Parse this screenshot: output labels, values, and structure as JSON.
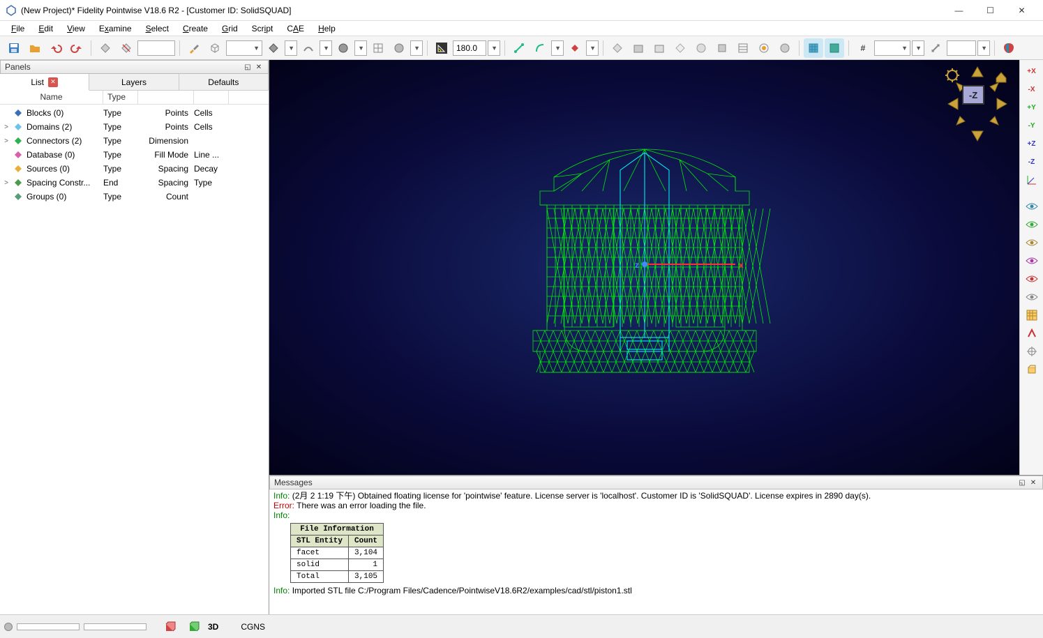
{
  "window": {
    "title": "(New Project)* Fidelity Pointwise V18.6 R2 - [Customer ID: SolidSQUAD]"
  },
  "menus": [
    "File",
    "Edit",
    "View",
    "Examine",
    "Select",
    "Create",
    "Grid",
    "Script",
    "CAE",
    "Help"
  ],
  "toolbar": {
    "angle_value": "180.0"
  },
  "panels": {
    "title": "Panels",
    "tabs": [
      {
        "label": "List",
        "active": true,
        "closable": true
      },
      {
        "label": "Layers",
        "active": false,
        "closable": false
      },
      {
        "label": "Defaults",
        "active": false,
        "closable": false
      }
    ],
    "columns": [
      "Name",
      "Type",
      "",
      ""
    ],
    "tree": [
      {
        "exp": "",
        "icon": "#3a6fb5",
        "name": "Blocks (0)",
        "c2": "Type",
        "c3": "Points",
        "c4": "Cells"
      },
      {
        "exp": ">",
        "icon": "#6fc3e8",
        "name": "Domains (2)",
        "c2": "Type",
        "c3": "Points",
        "c4": "Cells"
      },
      {
        "exp": ">",
        "icon": "#2bb24c",
        "name": "Connectors (2)",
        "c2": "Type",
        "c3": "Dimension",
        "c4": ""
      },
      {
        "exp": "",
        "icon": "#d85fa8",
        "name": "Database (0)",
        "c2": "Type",
        "c3": "Fill Mode",
        "c4": "Line ..."
      },
      {
        "exp": "",
        "icon": "#e8b03a",
        "name": "Sources (0)",
        "c2": "Type",
        "c3": "Spacing",
        "c4": "Decay"
      },
      {
        "exp": ">",
        "icon": "#4a9c4a",
        "name": "Spacing Constr...",
        "c2": "End",
        "c3": "Spacing",
        "c4": "Type"
      },
      {
        "exp": "",
        "icon": "#5a9c7a",
        "name": "Groups (0)",
        "c2": "Type",
        "c3": "Count",
        "c4": ""
      }
    ]
  },
  "viewport": {
    "cube_label": "-Z",
    "axis_x": "x",
    "axis_z": "z",
    "mesh_color": "#00ff00",
    "mesh_accent": "#00ffff",
    "axis_x_color": "#ff0000",
    "axis_z_color": "#4488ff"
  },
  "right_tools": [
    "+X",
    "-X",
    "+Y",
    "-Y",
    "+Z",
    "-Z"
  ],
  "messages": {
    "title": "Messages",
    "lines": [
      {
        "cls": "info",
        "prefix": "Info:",
        "text": " (2月 2 1:19 下午) Obtained floating license for 'pointwise' feature. License server is 'localhost'. Customer ID is 'SolidSQUAD'. License expires in 2890 day(s)."
      },
      {
        "cls": "err",
        "prefix": "Error:",
        "text": " There was an error loading the file."
      },
      {
        "cls": "info",
        "prefix": "Info:",
        "text": ""
      }
    ],
    "table": {
      "title": "File Information",
      "header": [
        "STL Entity",
        "Count"
      ],
      "rows": [
        [
          "facet",
          "3,104"
        ],
        [
          "solid",
          "1"
        ],
        [
          "Total",
          "3,105"
        ]
      ]
    },
    "footer": {
      "prefix": "Info:",
      "text": " Imported STL file C:/Program Files/Cadence/PointwiseV18.6R2/examples/cad/stl/piston1.stl"
    }
  },
  "statusbar": {
    "solver": "CGNS",
    "mode": "3D"
  }
}
